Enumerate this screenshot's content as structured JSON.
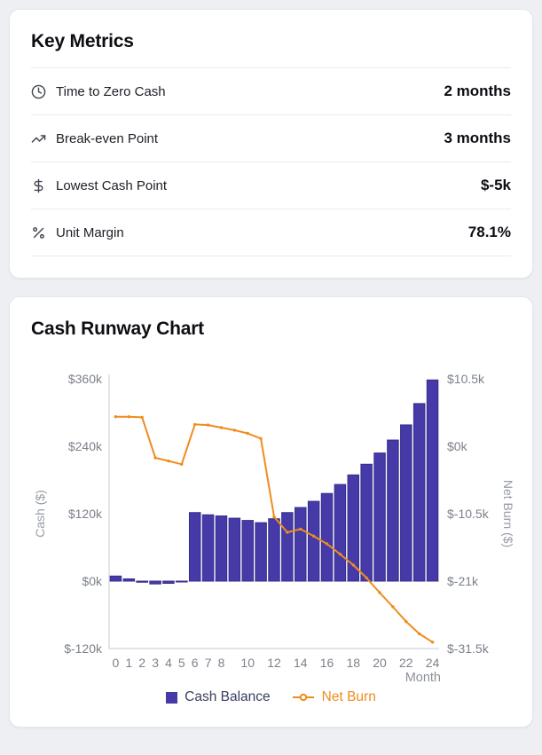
{
  "page": {
    "background": "#edeff2",
    "card_background": "#ffffff"
  },
  "key_metrics": {
    "title": "Key Metrics",
    "rows": [
      {
        "icon": "clock-icon",
        "label": "Time to Zero Cash",
        "value": "2 months"
      },
      {
        "icon": "trending-up-icon",
        "label": "Break-even Point",
        "value": "3 months"
      },
      {
        "icon": "dollar-icon",
        "label": "Lowest Cash Point",
        "value": "$-5k"
      },
      {
        "icon": "percent-icon",
        "label": "Unit Margin",
        "value": "78.1%"
      }
    ]
  },
  "runway": {
    "title": "Cash Runway Chart",
    "legend": [
      {
        "label": "Cash Balance",
        "marker": "square",
        "color": "#453AA8",
        "text_color": "#3A4060"
      },
      {
        "label": "Net Burn",
        "marker": "line-dot",
        "color": "#EF8C1E",
        "text_color": "#EF8C1E"
      }
    ],
    "chart_data": {
      "type": "bar+line",
      "xlabel": "Month",
      "x": [
        0,
        1,
        2,
        3,
        4,
        5,
        6,
        7,
        8,
        9,
        10,
        11,
        12,
        13,
        14,
        15,
        16,
        17,
        18,
        19,
        20,
        21,
        22,
        23,
        24
      ],
      "x_tick_months": [
        0,
        1,
        2,
        3,
        4,
        5,
        6,
        7,
        8,
        10,
        12,
        14,
        16,
        18,
        20,
        22,
        24
      ],
      "values_unit": "thousand_dollars",
      "series": [
        {
          "name": "Cash Balance",
          "type": "bar",
          "y_axis": "left",
          "color": "#453AA8",
          "border_color": "#362E8C",
          "values": [
            9,
            4,
            -2,
            -5,
            -4,
            -1,
            122,
            118,
            116,
            112,
            108,
            104,
            111,
            122,
            131,
            142,
            156,
            172,
            189,
            208,
            228,
            251,
            278,
            316,
            358
          ]
        },
        {
          "name": "Net Burn",
          "type": "line",
          "y_axis": "right",
          "color": "#EF8C1E",
          "values": [
            4.6,
            4.6,
            4.5,
            -1.8,
            -2.3,
            -2.8,
            3.4,
            3.3,
            2.9,
            2.5,
            2.0,
            1.2,
            -11.0,
            -13.4,
            -12.9,
            -14.0,
            -15.2,
            -16.8,
            -18.5,
            -20.5,
            -22.8,
            -25.0,
            -27.3,
            -29.2,
            -30.5
          ]
        }
      ],
      "left_axis": {
        "title": "Cash ($)",
        "range": [
          -120,
          360
        ],
        "ticks": [
          360,
          240,
          120,
          0,
          -120
        ],
        "tick_labels": [
          "$360k",
          "$240k",
          "$120k",
          "$0k",
          "$-120k"
        ]
      },
      "right_axis": {
        "title": "Net Burn ($)",
        "range": [
          -31.5,
          10.5
        ],
        "ticks": [
          10.5,
          0,
          -10.5,
          -21,
          -31.5
        ],
        "tick_labels": [
          "$10.5k",
          "$0k",
          "$-10.5k",
          "$-21k",
          "$-31.5k"
        ]
      },
      "legend_position": "bottom",
      "grid": "zero-line-only"
    }
  }
}
